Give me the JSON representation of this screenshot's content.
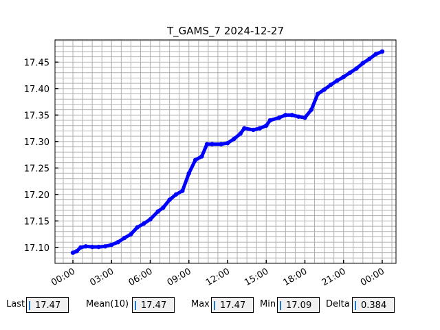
{
  "chart_data": {
    "type": "line",
    "title": "T_GAMS_7 2024-12-27",
    "xlabel": "",
    "ylabel": "",
    "x_tick_labels": [
      "00:00",
      "03:00",
      "06:00",
      "09:00",
      "12:00",
      "15:00",
      "18:00",
      "21:00",
      "00:00"
    ],
    "y_tick_labels": [
      "17.10",
      "17.15",
      "17.20",
      "17.25",
      "17.30",
      "17.35",
      "17.40",
      "17.45"
    ],
    "y_ticks": [
      17.1,
      17.15,
      17.2,
      17.25,
      17.3,
      17.35,
      17.4,
      17.45
    ],
    "xlim_hours": [
      -1.39,
      25.07
    ],
    "ylim": [
      17.07,
      17.492
    ],
    "grid": true,
    "color": "#0000ff",
    "x_hours": [
      0,
      0.3,
      0.6,
      1,
      1.5,
      2,
      2.5,
      3,
      3.5,
      4,
      4.5,
      5,
      5.5,
      6,
      6.6,
      7,
      7.5,
      8,
      8.5,
      9,
      9.5,
      10,
      10.4,
      10.8,
      11.5,
      12,
      12.5,
      13,
      13.3,
      14,
      14.5,
      15,
      15.3,
      16,
      16.5,
      17,
      17.5,
      18,
      18.5,
      19,
      19.5,
      20,
      20.5,
      21,
      21.5,
      22,
      22.5,
      23,
      23.5,
      24
    ],
    "y": [
      17.09,
      17.093,
      17.1,
      17.102,
      17.101,
      17.101,
      17.102,
      17.105,
      17.11,
      17.118,
      17.125,
      17.138,
      17.145,
      17.153,
      17.168,
      17.175,
      17.19,
      17.2,
      17.207,
      17.24,
      17.265,
      17.272,
      17.295,
      17.295,
      17.295,
      17.297,
      17.305,
      17.315,
      17.325,
      17.322,
      17.325,
      17.33,
      17.34,
      17.345,
      17.35,
      17.35,
      17.347,
      17.345,
      17.36,
      17.39,
      17.398,
      17.407,
      17.415,
      17.422,
      17.43,
      17.438,
      17.448,
      17.456,
      17.465,
      17.47
    ]
  },
  "stats": {
    "last_label": "Last",
    "last_value": "17.47",
    "mean_label": "Mean(10)",
    "mean_value": "17.47",
    "max_label": "Max",
    "max_value": "17.47",
    "min_label": "Min",
    "min_value": "17.09",
    "delta_label": "Delta",
    "delta_value": "0.384"
  }
}
